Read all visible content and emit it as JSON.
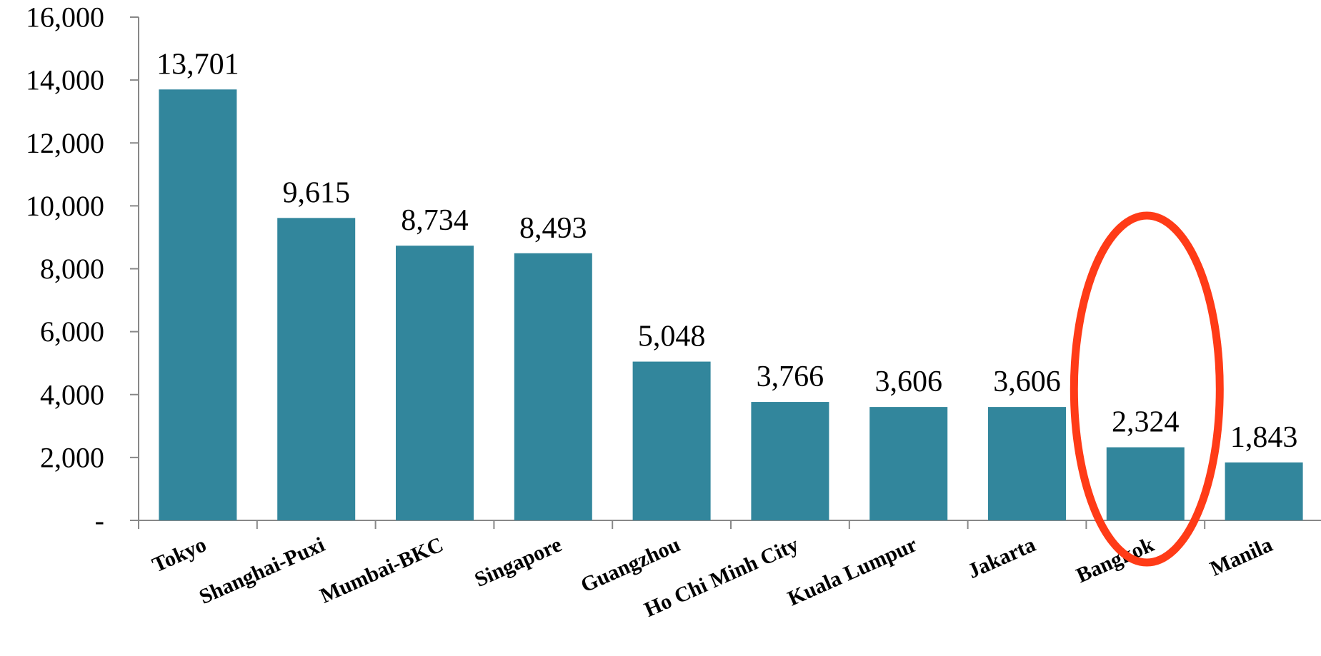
{
  "chart_data": {
    "type": "bar",
    "categories": [
      "Tokyo",
      "Shanghai-Puxi",
      "Mumbai-BKC",
      "Singapore",
      "Guangzhou",
      "Ho Chi Minh City",
      "Kuala Lumpur",
      "Jakarta",
      "Bangkok",
      "Manila"
    ],
    "values": [
      13701,
      9615,
      8734,
      8493,
      5048,
      3766,
      3606,
      3606,
      2324,
      1843
    ],
    "value_labels": [
      "13,701",
      "9,615",
      "8,734",
      "8,493",
      "5,048",
      "3,766",
      "3,606",
      "3,606",
      "2,324",
      "1,843"
    ],
    "ylim": [
      0,
      16000
    ],
    "yticks": [
      0,
      2000,
      4000,
      6000,
      8000,
      10000,
      12000,
      14000,
      16000
    ],
    "ytick_labels": [
      "-",
      "2,000",
      "4,000",
      "6,000",
      "8,000",
      "10,000",
      "12,000",
      "14,000",
      "16,000"
    ],
    "grid": false,
    "bar_color": "#32869c",
    "highlight": {
      "category": "Bangkok",
      "shape": "ellipse",
      "color": "#ff3b17"
    }
  }
}
